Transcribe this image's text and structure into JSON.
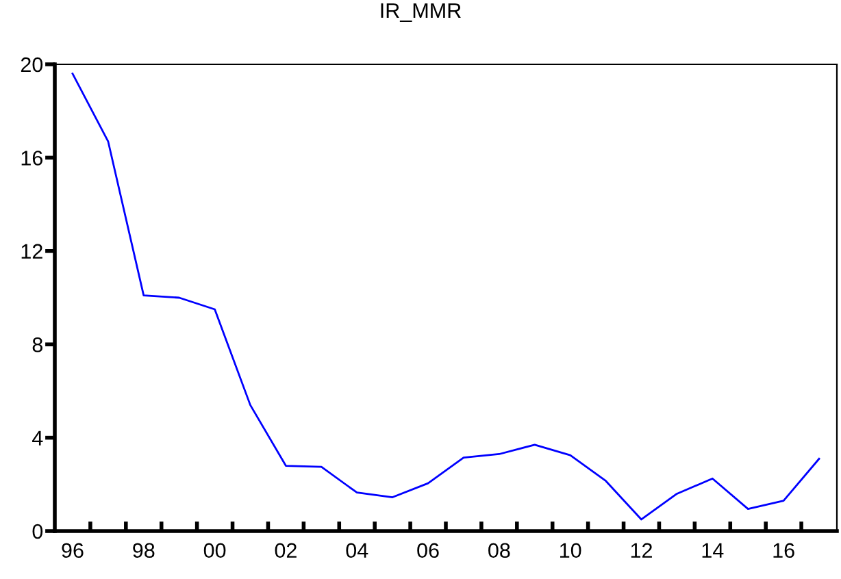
{
  "chart_data": {
    "type": "line",
    "title": "IR_MMR",
    "x": [
      1996,
      1997,
      1998,
      1999,
      2000,
      2001,
      2002,
      2003,
      2004,
      2005,
      2006,
      2007,
      2008,
      2009,
      2010,
      2011,
      2012,
      2013,
      2014,
      2015,
      2016,
      2017
    ],
    "series": [
      {
        "color": "#0000ff",
        "values": [
          19.6,
          16.7,
          10.1,
          10.0,
          9.5,
          5.4,
          2.8,
          2.75,
          1.65,
          1.45,
          2.05,
          3.15,
          3.3,
          3.7,
          3.25,
          2.15,
          0.5,
          1.6,
          2.25,
          0.95,
          1.3,
          3.1
        ]
      }
    ],
    "xlim": [
      1995.5,
      2017.5
    ],
    "xticks": [
      {
        "value": 1996,
        "label": "96"
      },
      {
        "value": 1998,
        "label": "98"
      },
      {
        "value": 2000,
        "label": "00"
      },
      {
        "value": 2002,
        "label": "02"
      },
      {
        "value": 2004,
        "label": "04"
      },
      {
        "value": 2006,
        "label": "06"
      },
      {
        "value": 2008,
        "label": "08"
      },
      {
        "value": 2010,
        "label": "10"
      },
      {
        "value": 2012,
        "label": "12"
      },
      {
        "value": 2014,
        "label": "14"
      },
      {
        "value": 2016,
        "label": "16"
      },
      {
        "value": 1996.5,
        "label": null
      },
      {
        "value": 1997.5,
        "label": null
      },
      {
        "value": 1998.5,
        "label": null
      },
      {
        "value": 1999.5,
        "label": null
      },
      {
        "value": 2000.5,
        "label": null
      },
      {
        "value": 2001.5,
        "label": null
      },
      {
        "value": 2002.5,
        "label": null
      },
      {
        "value": 2003.5,
        "label": null
      },
      {
        "value": 2004.5,
        "label": null
      },
      {
        "value": 2005.5,
        "label": null
      },
      {
        "value": 2006.5,
        "label": null
      },
      {
        "value": 2007.5,
        "label": null
      },
      {
        "value": 2008.5,
        "label": null
      },
      {
        "value": 2009.5,
        "label": null
      },
      {
        "value": 2010.5,
        "label": null
      },
      {
        "value": 2011.5,
        "label": null
      },
      {
        "value": 2012.5,
        "label": null
      },
      {
        "value": 2013.5,
        "label": null
      },
      {
        "value": 2014.5,
        "label": null
      },
      {
        "value": 2015.5,
        "label": null
      },
      {
        "value": 2016.5,
        "label": null
      }
    ],
    "ylim": [
      0,
      20
    ],
    "yticks": [
      0,
      4,
      8,
      12,
      16,
      20
    ],
    "grid": false,
    "legend": false
  }
}
